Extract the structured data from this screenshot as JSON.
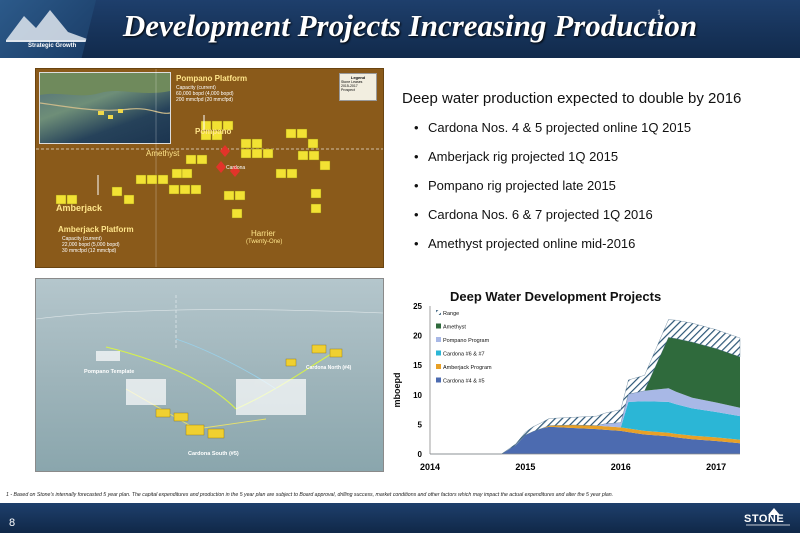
{
  "header": {
    "title": "Development Projects Increasing Production",
    "title_footnote_marker": "1",
    "section_label": "Strategic Growth"
  },
  "map": {
    "pompano_platform": {
      "title": "Pompano Platform",
      "lines": [
        "Capacity (current)",
        "60,000 bopd (4,000 bopd)",
        "200 mmcfpd (20 mmcfpd)"
      ]
    },
    "amberjack_platform": {
      "title": "Amberjack Platform",
      "lines": [
        "Capacity (current)",
        "22,000 bopd (5,000 bopd)",
        "30 mmcfpd (12 mmcfpd)"
      ]
    },
    "labels": {
      "pompano": "Pompano",
      "amethyst": "Amethyst",
      "amberjack": "Amberjack",
      "harrier": "Harrier",
      "harrier_sub": "(Twenty-One)",
      "cardona": "Cardona"
    },
    "legend": {
      "title": "Legend",
      "items": [
        "Stone Leases",
        "2015-2017",
        "Prospect"
      ]
    }
  },
  "render": {
    "pompano_template": "Pompano Template",
    "cardona_north": "Cardona North (#4)",
    "cardona_south": "Cardona South (#5)"
  },
  "main": {
    "heading": "Deep water production expected to double by 2016",
    "bullets": [
      "Cardona Nos. 4 & 5 projected online 1Q 2015",
      "Amberjack rig projected 1Q 2015",
      "Pompano rig projected late 2015",
      "Cardona Nos. 6 & 7 projected 1Q 2016",
      "Amethyst projected online mid-2016"
    ],
    "bullet_symbol": "•"
  },
  "chart_data": {
    "type": "area",
    "title": "Deep Water Development Projects",
    "ylabel": "mboepd",
    "xlabel": "",
    "x_ticks": [
      "2014",
      "2015",
      "2016",
      "2017"
    ],
    "y_ticks": [
      "0",
      "5",
      "10",
      "15",
      "20",
      "25"
    ],
    "ylim": [
      0,
      25
    ],
    "x": [
      2014.0,
      2014.25,
      2014.5,
      2014.75,
      2014.9,
      2015.0,
      2015.08,
      2015.17,
      2015.25,
      2015.5,
      2015.75,
      2015.83,
      2016.0,
      2016.08,
      2016.25,
      2016.5,
      2016.58,
      2016.75,
      2017.0,
      2017.25
    ],
    "legend_placement": "top-left",
    "series": [
      {
        "name": "Cardona #4 & #5",
        "color": "#4c6bb0",
        "values": [
          0,
          0,
          0,
          0,
          1.5,
          3.2,
          3.8,
          4.3,
          4.6,
          4.4,
          4.2,
          4.1,
          3.9,
          3.7,
          3.3,
          3.0,
          2.8,
          2.5,
          2.2,
          1.8
        ]
      },
      {
        "name": "Amberjack Program",
        "color": "#e8a026",
        "values": [
          0,
          0,
          0,
          0,
          0,
          0,
          0,
          0,
          0.2,
          0.5,
          0.6,
          0.6,
          0.6,
          0.6,
          0.6,
          0.6,
          0.6,
          0.6,
          0.6,
          0.6
        ]
      },
      {
        "name": "Cardona #6 & #7",
        "color": "#2bb6d6",
        "values": [
          0,
          0,
          0,
          0,
          0,
          0,
          0,
          0,
          0,
          0,
          0,
          0,
          0,
          4.5,
          5.0,
          5.2,
          5.0,
          4.6,
          4.3,
          4.0
        ]
      },
      {
        "name": "Pompano Program",
        "color": "#a8b8e6",
        "values": [
          0,
          0,
          0,
          0,
          0,
          0,
          0,
          0,
          0,
          0,
          0,
          0.4,
          0.8,
          1.3,
          1.8,
          2.3,
          2.1,
          1.8,
          1.6,
          1.4
        ]
      },
      {
        "name": "Amethyst",
        "color": "#2f6a3c",
        "values": [
          0,
          0,
          0,
          0,
          0,
          0,
          0,
          0,
          0,
          0,
          0,
          0,
          0,
          0,
          0,
          8.6,
          9.0,
          9.4,
          9.1,
          8.6
        ]
      },
      {
        "name": "Range",
        "color": "#9bc0d8",
        "values": [
          0,
          0,
          0,
          0,
          0.2,
          0.5,
          0.8,
          1.0,
          1.2,
          1.3,
          1.6,
          1.8,
          2.2,
          2.4,
          2.6,
          3.0,
          3.1,
          3.2,
          3.2,
          3.2
        ]
      }
    ]
  },
  "footnote": "1 - Based on Stone's internally forecasted 5 year plan. The capital expenditures and production in the 5 year plan are subject to Board approval, drilling success, market conditions and other factors which may impact the actual expenditures and alter the 5 year plan.",
  "footer": {
    "page_number": "8",
    "logo_text": "STONE"
  }
}
